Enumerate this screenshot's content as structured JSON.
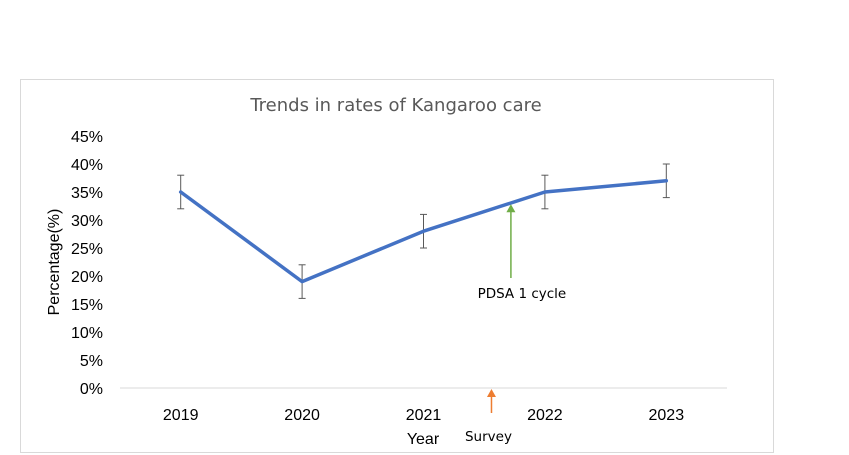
{
  "chart_data": {
    "type": "line",
    "title": "Trends in rates of Kangaroo care",
    "xlabel": "Year",
    "ylabel": "Percentage(%)",
    "categories": [
      "2019",
      "2020",
      "2021",
      "2022",
      "2023"
    ],
    "series": [
      {
        "values": [
          35,
          19,
          28,
          35,
          37
        ],
        "error": [
          3,
          3,
          3,
          3,
          3
        ],
        "color": "#4472C4"
      }
    ],
    "ylim": [
      0,
      45
    ],
    "y_ticks": [
      "0%",
      "5%",
      "10%",
      "15%",
      "20%",
      "25%",
      "30%",
      "35%",
      "40%",
      "45%"
    ],
    "grid": false,
    "legend": "none",
    "annotations": [
      {
        "text": "PDSA 1 cycle",
        "x_between": [
          "2021",
          "2022"
        ],
        "x_fraction": 0.72,
        "arrow_tip_value": 33,
        "arrow_color": "#70AD47"
      },
      {
        "text": "Survey",
        "x_between": [
          "2021",
          "2022"
        ],
        "x_fraction": 0.56,
        "arrow_color": "#ED7D31"
      }
    ]
  }
}
